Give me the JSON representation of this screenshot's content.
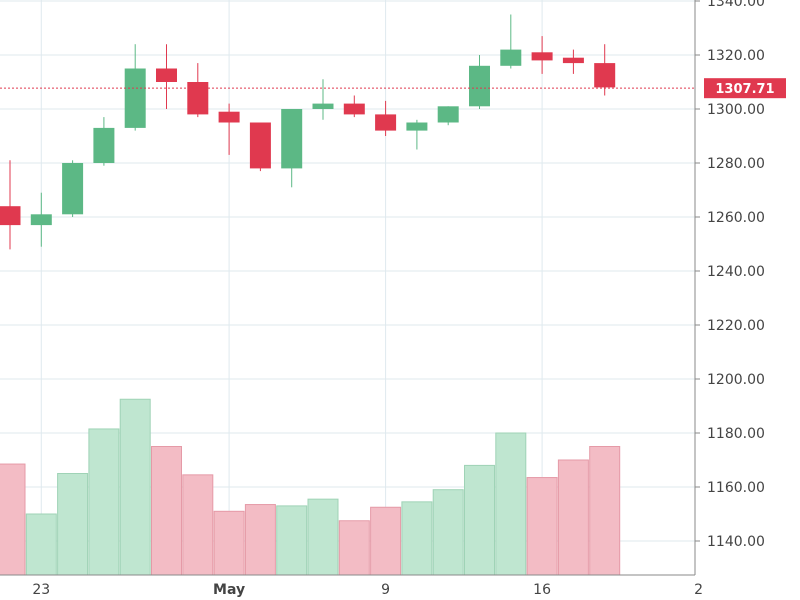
{
  "chart_data": {
    "type": "candlestick",
    "price_axis": {
      "ticks": [
        "1140.00",
        "1160.00",
        "1180.00",
        "1200.00",
        "1220.00",
        "1240.00",
        "1260.00",
        "1280.00",
        "1300.00",
        "1320.00",
        "1340.00"
      ],
      "range": [
        1128,
        1342
      ]
    },
    "date_axis": {
      "labels": [
        {
          "text": "23",
          "slot": 1,
          "bold": false
        },
        {
          "text": "May",
          "slot": 7,
          "bold": true
        },
        {
          "text": "9",
          "slot": 12,
          "bold": false
        },
        {
          "text": "16",
          "slot": 17,
          "bold": false
        },
        {
          "text": "2",
          "slot": 22,
          "bold": false
        }
      ]
    },
    "last_price": {
      "value": 1307.71,
      "label": "1307.71",
      "color": "#e0394f"
    },
    "colors": {
      "up": "#5cb885",
      "down": "#e0394f",
      "volume_up": "#bfe6d0",
      "volume_down": "#f3bcc5",
      "grid": "#dfe9ee",
      "axis": "#8a8a8a"
    },
    "volume_scale": 1.0,
    "candles": [
      {
        "open": 1264,
        "high": 1281,
        "low": 1248,
        "close": 1257,
        "volume": 1168.5
      },
      {
        "open": 1257,
        "high": 1269,
        "low": 1249,
        "close": 1261,
        "volume": 1150
      },
      {
        "open": 1261,
        "high": 1281,
        "low": 1260,
        "close": 1280,
        "volume": 1165
      },
      {
        "open": 1280,
        "high": 1297,
        "low": 1279,
        "close": 1293,
        "volume": 1181.5
      },
      {
        "open": 1293,
        "high": 1324,
        "low": 1292,
        "close": 1315,
        "volume": 1192.5
      },
      {
        "open": 1315,
        "high": 1324,
        "low": 1300,
        "close": 1310,
        "volume": 1175
      },
      {
        "open": 1310,
        "high": 1317,
        "low": 1297,
        "close": 1298,
        "volume": 1164.5
      },
      {
        "open": 1299,
        "high": 1302,
        "low": 1283,
        "close": 1295,
        "volume": 1151
      },
      {
        "open": 1295,
        "high": 1295,
        "low": 1277,
        "close": 1278,
        "volume": 1153.5
      },
      {
        "open": 1278,
        "high": 1300,
        "low": 1271,
        "close": 1300,
        "volume": 1153
      },
      {
        "open": 1300,
        "high": 1311,
        "low": 1296,
        "close": 1302,
        "volume": 1155.5
      },
      {
        "open": 1302,
        "high": 1305,
        "low": 1297,
        "close": 1298,
        "volume": 1147.5
      },
      {
        "open": 1298,
        "high": 1303,
        "low": 1290,
        "close": 1292,
        "volume": 1152.5
      },
      {
        "open": 1292,
        "high": 1296,
        "low": 1285,
        "close": 1295,
        "volume": 1154.5
      },
      {
        "open": 1295,
        "high": 1301,
        "low": 1294,
        "close": 1301,
        "volume": 1159
      },
      {
        "open": 1301,
        "high": 1320,
        "low": 1300,
        "close": 1316,
        "volume": 1168
      },
      {
        "open": 1316,
        "high": 1335,
        "low": 1315,
        "close": 1322,
        "volume": 1180
      },
      {
        "open": 1321,
        "high": 1327,
        "low": 1313,
        "close": 1318,
        "volume": 1163.5
      },
      {
        "open": 1319,
        "high": 1322,
        "low": 1313,
        "close": 1317,
        "volume": 1170
      },
      {
        "open": 1317,
        "high": 1324,
        "low": 1305,
        "close": 1308,
        "volume": 1175
      }
    ]
  }
}
